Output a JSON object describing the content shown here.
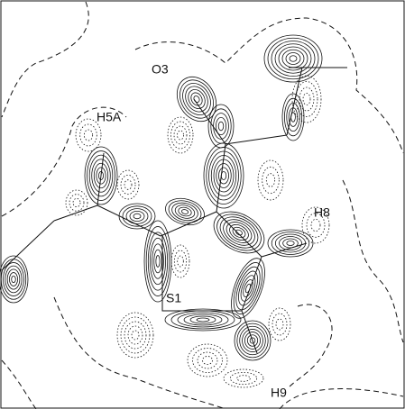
{
  "labels": {
    "o3": "O3",
    "h5a": "H5A",
    "h8": "H8",
    "s1": "S1",
    "h9": "H9"
  }
}
